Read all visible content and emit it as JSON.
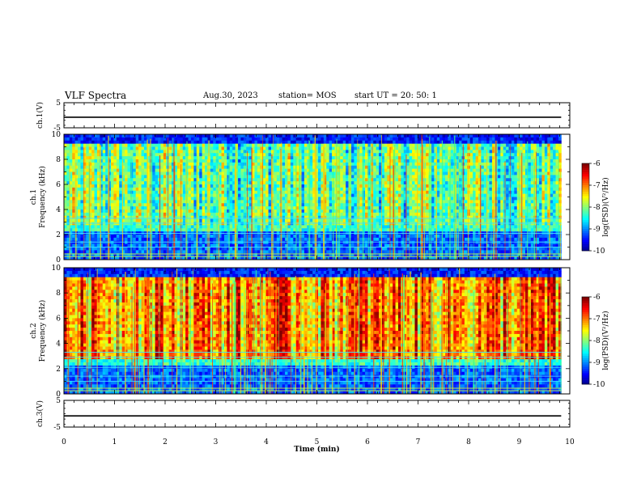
{
  "header": {
    "title": "VLF Spectra",
    "date": "Aug.30, 2023",
    "station": "station= MOS",
    "start": "start  UT  =   20: 50: 1"
  },
  "chart_data": [
    {
      "type": "line",
      "name": "ch1-voltage",
      "ylabel": "ch.1(V)",
      "ylim": [
        -5,
        5
      ],
      "yticks": [
        "5",
        "-5"
      ],
      "values_level": -0.8
    },
    {
      "type": "heatmap",
      "name": "ch1-spectrogram",
      "ylabel_top": "ch.1",
      "ylabel": "Frequency (kHz)",
      "ylim": [
        0,
        10
      ],
      "yticks": [
        "0",
        "2",
        "4",
        "6",
        "8",
        "10"
      ],
      "colorbar": {
        "label": "log(PSD)(V²/Hz)",
        "ticks": [
          "-6",
          "-7",
          "-8",
          "-9",
          "-10"
        ],
        "range": [
          -10,
          -6
        ]
      },
      "note_intensity": "mostly blue/cyan background with vertical orange-red bursts"
    },
    {
      "type": "heatmap",
      "name": "ch2-spectrogram",
      "ylabel_top": "ch.2",
      "ylabel": "Frequency (kHz)",
      "ylim": [
        0,
        10
      ],
      "yticks": [
        "0",
        "2",
        "4",
        "6",
        "8",
        "10"
      ],
      "colorbar": {
        "label": "log(PSD)(V²/Hz)",
        "ticks": [
          "-6",
          "-7",
          "-8",
          "-9",
          "-10"
        ],
        "range": [
          -10,
          -6
        ]
      }
    },
    {
      "type": "line",
      "name": "ch3-voltage",
      "ylabel": "ch.3(V)",
      "ylim": [
        -5,
        5
      ],
      "yticks": [
        "5",
        "-5"
      ],
      "values_level": -0.8
    }
  ],
  "xaxis": {
    "label": "Time  (min)",
    "ticks": [
      "0",
      "1",
      "2",
      "3",
      "4",
      "5",
      "6",
      "7",
      "8",
      "9",
      "10"
    ],
    "range": [
      0,
      10
    ],
    "data_end": 9.83
  },
  "colors": {
    "background": "#ffffff",
    "axis": "#000000"
  }
}
